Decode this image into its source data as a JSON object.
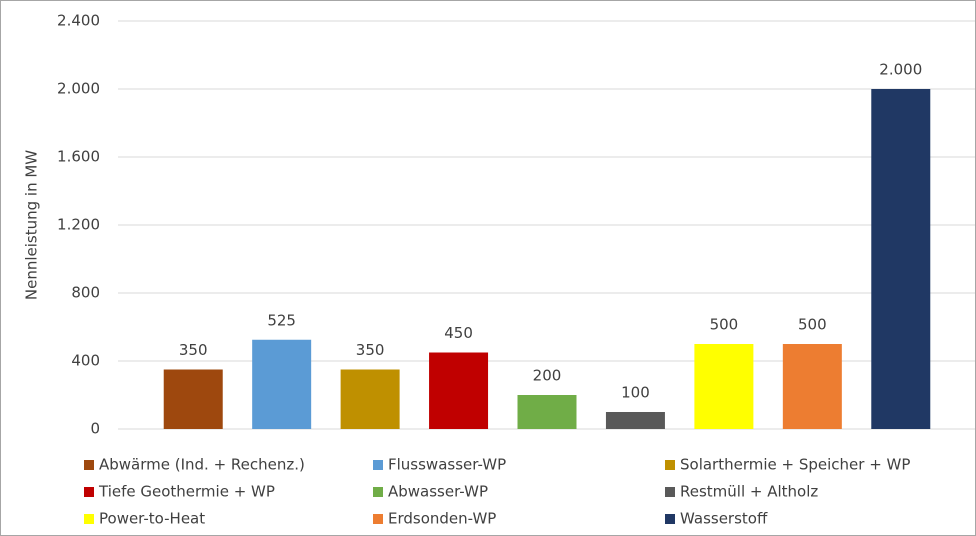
{
  "chart_data": {
    "type": "bar",
    "y_axis_label": "Nennleistung in MW",
    "categories": [
      "Abwärme (Ind. + Rechenz.)",
      "Flusswasser-WP",
      "Solarthermie + Speicher + WP",
      "Tiefe Geothermie + WP",
      "Abwasser-WP",
      "Restmüll + Altholz",
      "Power-to-Heat",
      "Erdsonden-WP",
      "Wasserstoff"
    ],
    "values": [
      350,
      525,
      350,
      450,
      200,
      100,
      500,
      500,
      2000
    ],
    "value_labels": [
      "350",
      "525",
      "350",
      "450",
      "200",
      "100",
      "500",
      "500",
      "2.000"
    ],
    "colors": [
      "#9e480e",
      "#5b9bd5",
      "#bf9000",
      "#c00000",
      "#70ad47",
      "#595959",
      "#ffff00",
      "#ed7d31",
      "#203864"
    ],
    "ylim": [
      0,
      2400
    ],
    "yticks": [
      0,
      400,
      {
        "value": 800,
        "label": "800"
      },
      {
        "value": 1200,
        "label": "1.200"
      },
      {
        "value": 1600,
        "label": "1.600"
      },
      {
        "value": 2000,
        "label": "2.000"
      },
      {
        "value": 2400,
        "label": "2.400"
      }
    ],
    "grid": true,
    "legend": "bottom"
  }
}
